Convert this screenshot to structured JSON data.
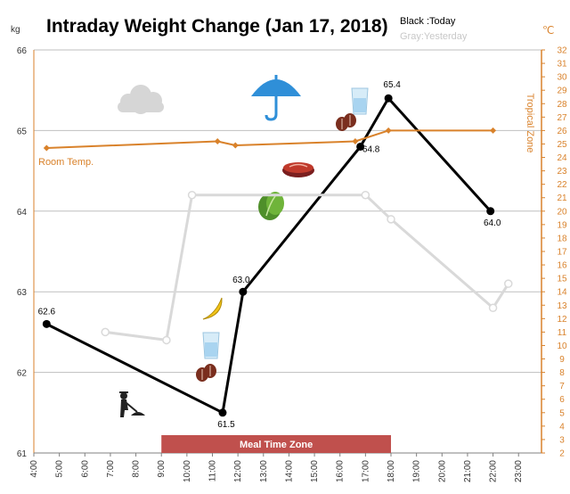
{
  "chart_data": {
    "type": "line",
    "title": "Intraday Weight Change (Jan 17, 2018)",
    "legend": {
      "today": "Black :Today",
      "yesterday": "Gray:Yesterday"
    },
    "y_left_unit": "kg",
    "y_right_unit": "℃",
    "x_ticks": [
      "4:00",
      "5:00",
      "6:00",
      "7:00",
      "8:00",
      "9:00",
      "10:00",
      "11:00",
      "12:00",
      "13:00",
      "14:00",
      "15:00",
      "16:00",
      "17:00",
      "18:00",
      "19:00",
      "20:00",
      "21:00",
      "22:00",
      "23:00"
    ],
    "x_range": [
      4,
      23.9
    ],
    "y_left_ticks": [
      "61",
      "62",
      "63",
      "64",
      "65",
      "66"
    ],
    "y_left_range": [
      61,
      66
    ],
    "y_right_ticks": [
      "2",
      "3",
      "4",
      "5",
      "6",
      "7",
      "8",
      "9",
      "10",
      "11",
      "12",
      "13",
      "14",
      "15",
      "16",
      "17",
      "18",
      "19",
      "20",
      "21",
      "22",
      "23",
      "24",
      "25",
      "26",
      "27",
      "28",
      "29",
      "30",
      "31",
      "32"
    ],
    "y_right_range": [
      2,
      32
    ],
    "series": [
      {
        "name": "Black :Today",
        "color": "#000000",
        "points": [
          [
            4.5,
            62.6
          ],
          [
            11.4,
            61.5
          ],
          [
            12.2,
            63.0
          ],
          [
            16.8,
            64.8
          ],
          [
            17.9,
            65.4
          ],
          [
            21.9,
            64.0
          ]
        ],
        "labels": [
          "62.6",
          "61.5",
          "63.0",
          "64.8",
          "65.4",
          "64.0"
        ]
      },
      {
        "name": "Gray:Yesterday",
        "color": "#d9d9d9",
        "points": [
          [
            6.8,
            62.5
          ],
          [
            9.2,
            62.4
          ],
          [
            10.2,
            64.2
          ],
          [
            17.0,
            64.2
          ],
          [
            18.0,
            63.9
          ],
          [
            22.0,
            62.8
          ],
          [
            22.6,
            63.1
          ]
        ]
      },
      {
        "name": "Room Temp.",
        "axis": "right",
        "color": "#d9822b",
        "points": [
          [
            4.5,
            24.7
          ],
          [
            11.2,
            25.2
          ],
          [
            11.9,
            24.9
          ],
          [
            16.6,
            25.2
          ],
          [
            17.9,
            26.0
          ],
          [
            22.0,
            26.0
          ]
        ]
      }
    ],
    "annotations": {
      "room_temp": "Room Temp.",
      "tropical_zone": "Tropical Zone",
      "meal_time_zone": "Meal Time Zone"
    },
    "tropical_zone_range": [
      20,
      32
    ],
    "meal_time_zone_range": [
      9.0,
      18.0
    ],
    "icons": [
      "cloud-icon",
      "umbrella-icon",
      "water-glass-icon",
      "coffee-beans-icon",
      "steak-icon",
      "lettuce-icon",
      "banana-icon",
      "water-glass-icon",
      "coffee-beans-icon",
      "gardener-icon"
    ]
  }
}
